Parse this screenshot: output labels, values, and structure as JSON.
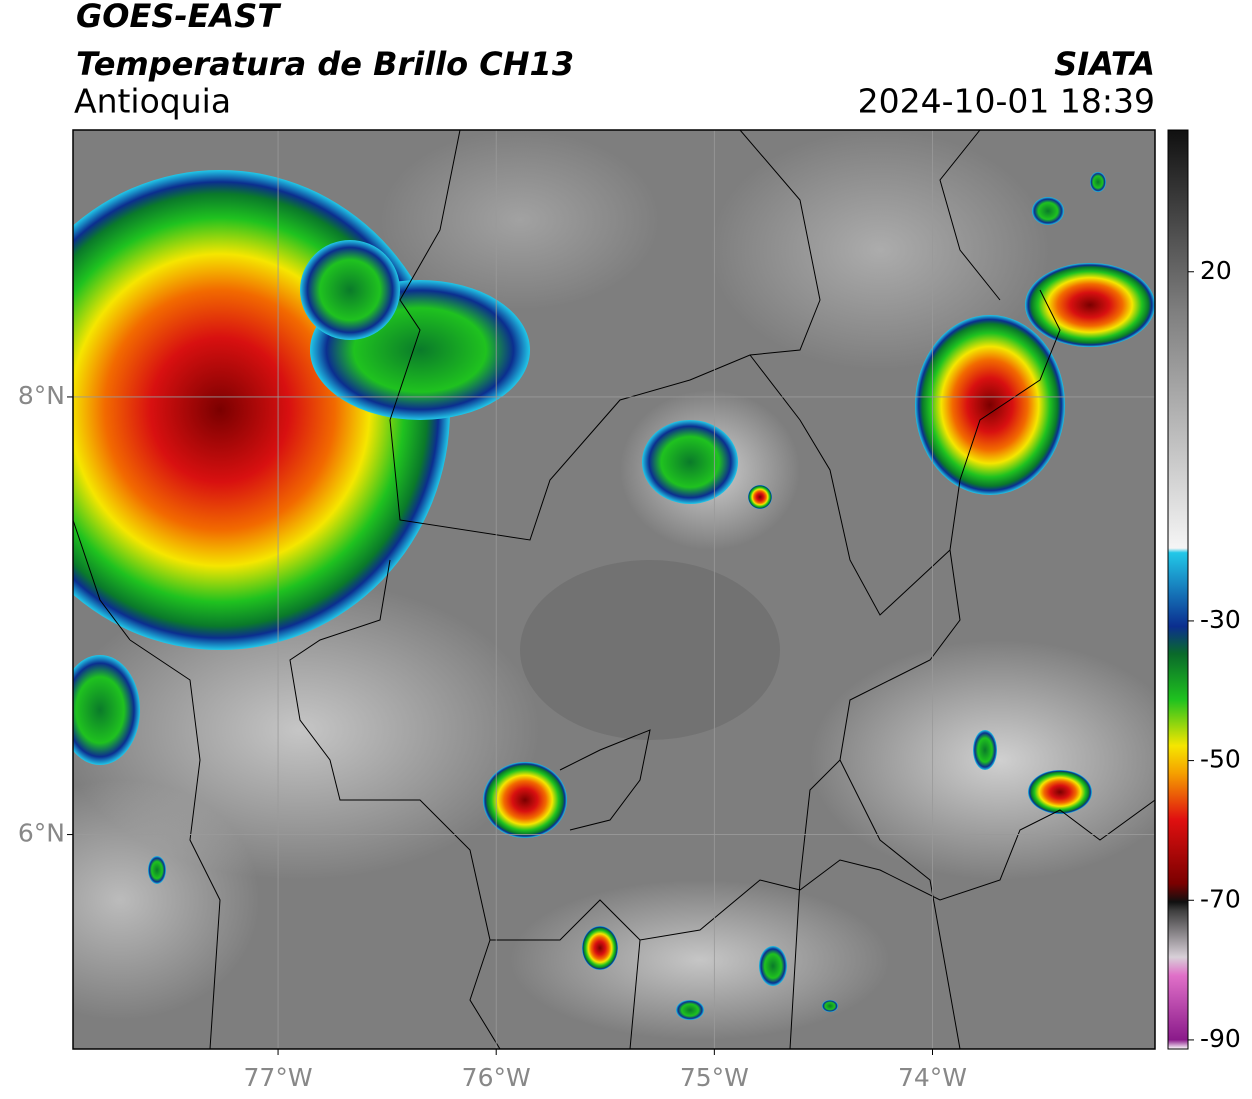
{
  "header": {
    "title": "GOES-EAST",
    "subtitle": "Temperatura de Brillo CH13",
    "region": "Antioquia",
    "source": "SIATA",
    "datetime": "2024-10-01 18:39"
  },
  "map": {
    "xlim": [
      -77.94,
      -72.98
    ],
    "ylim": [
      5.02,
      9.22
    ],
    "xticks": [
      {
        "value": -77,
        "label": "77°W"
      },
      {
        "value": -76,
        "label": "76°W"
      },
      {
        "value": -75,
        "label": "75°W"
      },
      {
        "value": -74,
        "label": "74°W"
      }
    ],
    "yticks": [
      {
        "value": 8,
        "label": "8°N"
      },
      {
        "value": 6,
        "label": "6°N"
      }
    ]
  },
  "colorbar": {
    "lim": [
      -91.3,
      40.3
    ],
    "ticks": [
      20,
      -30,
      -50,
      -70,
      -90
    ]
  }
}
